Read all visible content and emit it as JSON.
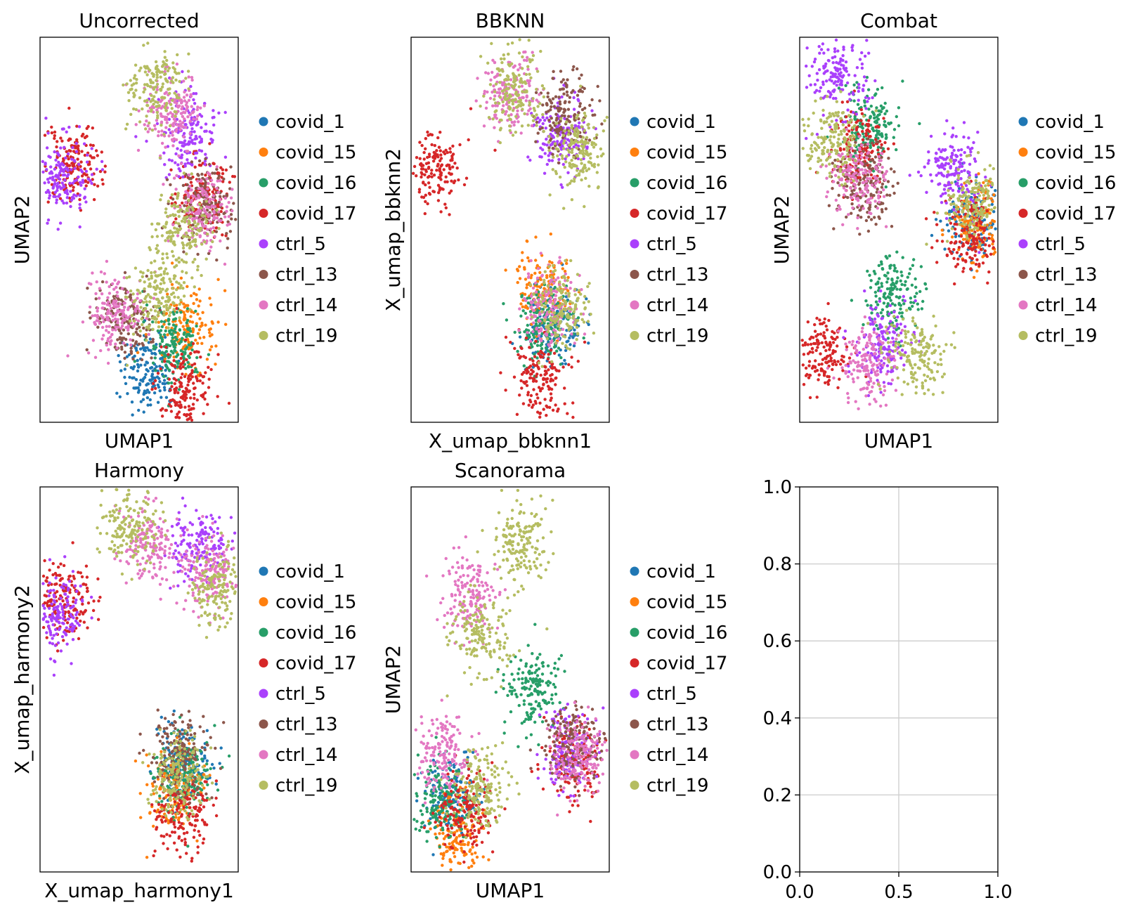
{
  "legend": {
    "categories": [
      "covid_1",
      "covid_15",
      "covid_16",
      "covid_17",
      "ctrl_5",
      "ctrl_13",
      "ctrl_14",
      "ctrl_19"
    ],
    "colors": [
      "#1f77b4",
      "#ff7f0e",
      "#279e68",
      "#d62728",
      "#aa40fc",
      "#8c564b",
      "#e377c2",
      "#b5bd61"
    ]
  },
  "chart_data": [
    {
      "type": "scatter",
      "title": "Uncorrected",
      "xlabel": "UMAP1",
      "ylabel": "UMAP2",
      "legend_entries": [
        "covid_1",
        "covid_15",
        "covid_16",
        "covid_17",
        "ctrl_5",
        "ctrl_13",
        "ctrl_14",
        "ctrl_19"
      ],
      "legend_placement": "right, outside axes",
      "ticks": "none",
      "clusters": [
        {
          "name": "covid_1",
          "color": "#1f77b4",
          "centers": [
            [
              0.55,
              0.13
            ]
          ]
        },
        {
          "name": "covid_15",
          "color": "#ff7f0e",
          "centers": [
            [
              0.74,
              0.24
            ]
          ]
        },
        {
          "name": "covid_16",
          "color": "#279e68",
          "centers": [
            [
              0.68,
              0.21
            ]
          ]
        },
        {
          "name": "covid_17",
          "color": "#d62728",
          "centers": [
            [
              0.73,
              0.09
            ],
            [
              0.16,
              0.67
            ],
            [
              0.82,
              0.59
            ]
          ]
        },
        {
          "name": "ctrl_5",
          "color": "#aa40fc",
          "centers": [
            [
              0.75,
              0.75
            ],
            [
              0.12,
              0.64
            ]
          ]
        },
        {
          "name": "ctrl_13",
          "color": "#8c564b",
          "centers": [
            [
              0.83,
              0.57
            ],
            [
              0.42,
              0.27
            ]
          ]
        },
        {
          "name": "ctrl_14",
          "color": "#e377c2",
          "centers": [
            [
              0.67,
              0.8
            ],
            [
              0.38,
              0.28
            ],
            [
              0.82,
              0.55
            ]
          ]
        },
        {
          "name": "ctrl_19",
          "color": "#b5bd61",
          "centers": [
            [
              0.58,
              0.33
            ],
            [
              0.58,
              0.87
            ],
            [
              0.72,
              0.49
            ]
          ]
        }
      ]
    },
    {
      "type": "scatter",
      "title": "BBKNN",
      "xlabel": "X_umap_bbknn1",
      "ylabel": "X_umap_bbknn2",
      "legend_entries": [
        "covid_1",
        "covid_15",
        "covid_16",
        "covid_17",
        "ctrl_5",
        "ctrl_13",
        "ctrl_14",
        "ctrl_19"
      ],
      "legend_placement": "right, outside axes",
      "ticks": "none",
      "clusters": [
        {
          "name": "covid_1",
          "color": "#1f77b4",
          "centers": [
            [
              0.72,
              0.25
            ]
          ]
        },
        {
          "name": "covid_15",
          "color": "#ff7f0e",
          "centers": [
            [
              0.68,
              0.35
            ]
          ]
        },
        {
          "name": "covid_16",
          "color": "#279e68",
          "centers": [
            [
              0.66,
              0.25
            ]
          ]
        },
        {
          "name": "covid_17",
          "color": "#d62728",
          "centers": [
            [
              0.65,
              0.12
            ],
            [
              0.12,
              0.66
            ]
          ]
        },
        {
          "name": "ctrl_5",
          "color": "#aa40fc",
          "centers": [
            [
              0.75,
              0.75
            ]
          ]
        },
        {
          "name": "ctrl_13",
          "color": "#8c564b",
          "centers": [
            [
              0.78,
              0.8
            ]
          ]
        },
        {
          "name": "ctrl_14",
          "color": "#e377c2",
          "centers": [
            [
              0.7,
              0.3
            ],
            [
              0.5,
              0.85
            ]
          ]
        },
        {
          "name": "ctrl_19",
          "color": "#b5bd61",
          "centers": [
            [
              0.75,
              0.3
            ],
            [
              0.52,
              0.86
            ],
            [
              0.85,
              0.7
            ]
          ]
        }
      ]
    },
    {
      "type": "scatter",
      "title": "Combat",
      "xlabel": "UMAP1",
      "ylabel": "UMAP2",
      "legend_entries": [
        "covid_1",
        "covid_15",
        "covid_16",
        "covid_17",
        "ctrl_5",
        "ctrl_13",
        "ctrl_14",
        "ctrl_19"
      ],
      "legend_placement": "right, outside axes",
      "ticks": "none",
      "clusters": [
        {
          "name": "covid_1",
          "color": "#1f77b4",
          "centers": [
            [
              0.88,
              0.53
            ]
          ]
        },
        {
          "name": "covid_15",
          "color": "#ff7f0e",
          "centers": [
            [
              0.9,
              0.52
            ]
          ]
        },
        {
          "name": "covid_16",
          "color": "#279e68",
          "centers": [
            [
              0.35,
              0.78
            ],
            [
              0.48,
              0.33
            ]
          ]
        },
        {
          "name": "covid_17",
          "color": "#d62728",
          "centers": [
            [
              0.3,
              0.71
            ],
            [
              0.86,
              0.48
            ],
            [
              0.1,
              0.18
            ]
          ]
        },
        {
          "name": "ctrl_5",
          "color": "#aa40fc",
          "centers": [
            [
              0.2,
              0.9
            ],
            [
              0.77,
              0.66
            ],
            [
              0.42,
              0.2
            ]
          ]
        },
        {
          "name": "ctrl_13",
          "color": "#8c564b",
          "centers": [
            [
              0.32,
              0.62
            ]
          ]
        },
        {
          "name": "ctrl_14",
          "color": "#e377c2",
          "centers": [
            [
              0.3,
              0.63
            ],
            [
              0.35,
              0.15
            ]
          ]
        },
        {
          "name": "ctrl_19",
          "color": "#b5bd61",
          "centers": [
            [
              0.17,
              0.74
            ],
            [
              0.58,
              0.18
            ],
            [
              0.88,
              0.57
            ]
          ]
        }
      ]
    },
    {
      "type": "scatter",
      "title": "Harmony",
      "xlabel": "X_umap_harmony1",
      "ylabel": "X_umap_harmony2",
      "legend_entries": [
        "covid_1",
        "covid_15",
        "covid_16",
        "covid_17",
        "ctrl_5",
        "ctrl_13",
        "ctrl_14",
        "ctrl_19"
      ],
      "legend_placement": "right, outside axes",
      "ticks": "none",
      "clusters": [
        {
          "name": "covid_1",
          "color": "#1f77b4",
          "centers": [
            [
              0.72,
              0.28
            ]
          ]
        },
        {
          "name": "covid_15",
          "color": "#ff7f0e",
          "centers": [
            [
              0.68,
              0.22
            ]
          ]
        },
        {
          "name": "covid_16",
          "color": "#279e68",
          "centers": [
            [
              0.72,
              0.25
            ]
          ]
        },
        {
          "name": "covid_17",
          "color": "#d62728",
          "centers": [
            [
              0.72,
              0.15
            ],
            [
              0.12,
              0.7
            ]
          ]
        },
        {
          "name": "ctrl_5",
          "color": "#aa40fc",
          "centers": [
            [
              0.8,
              0.85
            ],
            [
              0.1,
              0.68
            ]
          ]
        },
        {
          "name": "ctrl_13",
          "color": "#8c564b",
          "centers": [
            [
              0.7,
              0.3
            ]
          ]
        },
        {
          "name": "ctrl_14",
          "color": "#e377c2",
          "centers": [
            [
              0.55,
              0.85
            ],
            [
              0.85,
              0.78
            ]
          ]
        },
        {
          "name": "ctrl_19",
          "color": "#b5bd61",
          "centers": [
            [
              0.45,
              0.9
            ],
            [
              0.7,
              0.25
            ],
            [
              0.9,
              0.73
            ]
          ]
        }
      ]
    },
    {
      "type": "scatter",
      "title": "Scanorama",
      "xlabel": "UMAP1",
      "ylabel": "UMAP2",
      "legend_entries": [
        "covid_1",
        "covid_15",
        "covid_16",
        "covid_17",
        "ctrl_5",
        "ctrl_13",
        "ctrl_14",
        "ctrl_19"
      ],
      "legend_placement": "right, outside axes",
      "ticks": "none",
      "clusters": [
        {
          "name": "covid_1",
          "color": "#1f77b4",
          "centers": [
            [
              0.2,
              0.2
            ]
          ]
        },
        {
          "name": "covid_15",
          "color": "#ff7f0e",
          "centers": [
            [
              0.22,
              0.1
            ]
          ]
        },
        {
          "name": "covid_16",
          "color": "#279e68",
          "centers": [
            [
              0.15,
              0.18
            ],
            [
              0.62,
              0.47
            ]
          ]
        },
        {
          "name": "covid_17",
          "color": "#d62728",
          "centers": [
            [
              0.28,
              0.16
            ],
            [
              0.82,
              0.3
            ]
          ]
        },
        {
          "name": "ctrl_5",
          "color": "#aa40fc",
          "centers": [
            [
              0.8,
              0.32
            ]
          ]
        },
        {
          "name": "ctrl_13",
          "color": "#8c564b",
          "centers": [
            [
              0.82,
              0.33
            ]
          ]
        },
        {
          "name": "ctrl_14",
          "color": "#e377c2",
          "centers": [
            [
              0.3,
              0.72
            ],
            [
              0.15,
              0.3
            ],
            [
              0.85,
              0.3
            ]
          ]
        },
        {
          "name": "ctrl_19",
          "color": "#b5bd61",
          "centers": [
            [
              0.35,
              0.62
            ],
            [
              0.55,
              0.85
            ],
            [
              0.35,
              0.22
            ]
          ]
        }
      ]
    },
    {
      "type": "empty_axes",
      "title": "",
      "xlim": [
        0.0,
        1.0
      ],
      "ylim": [
        0.0,
        1.0
      ],
      "xticks": [
        "0.0",
        "0.5",
        "1.0"
      ],
      "yticks": [
        "0.0",
        "0.2",
        "0.4",
        "0.6",
        "0.8",
        "1.0"
      ],
      "grid": true
    }
  ]
}
